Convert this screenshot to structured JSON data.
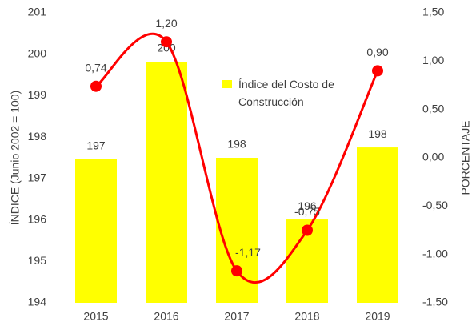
{
  "chart_data": {
    "type": "bar_line",
    "categories": [
      "2015",
      "2016",
      "2017",
      "2018",
      "2019"
    ],
    "series": [
      {
        "name": "Índice del Costo de Construcción",
        "type": "bar",
        "color": "#ffff00",
        "values": [
          197.47,
          199.82,
          197.5,
          196.01,
          197.75
        ],
        "value_labels": [
          "197",
          "200",
          "198",
          "196",
          "198"
        ]
      },
      {
        "type": "line",
        "axis": "y2",
        "color": "#ff0000",
        "smooth": true,
        "values": [
          0.74,
          1.2,
          -1.17,
          -0.75,
          0.9
        ],
        "value_labels": [
          "0,74",
          "1,20",
          "-1,17",
          "-0,75",
          "0,90"
        ]
      }
    ],
    "ylabel": "ÍNDICE (Junio 2002 = 100)",
    "y2label": "PORCENTAJE",
    "ylim": [
      194,
      201
    ],
    "yticks": [
      194,
      195,
      196,
      197,
      198,
      199,
      200,
      201
    ],
    "y2lim": [
      -1.5,
      1.5
    ],
    "y2ticks": [
      {
        "value": -1.5,
        "label": "-1,50"
      },
      {
        "value": -1,
        "label": "-1,00"
      },
      {
        "value": -0.5,
        "label": "-0,50"
      },
      {
        "value": 0,
        "label": "0,00"
      },
      {
        "value": 0.5,
        "label": "0,50"
      },
      {
        "value": 1,
        "label": "1,00"
      },
      {
        "value": 1.5,
        "label": "1,50"
      }
    ],
    "legend": "top-center",
    "grid": false
  }
}
